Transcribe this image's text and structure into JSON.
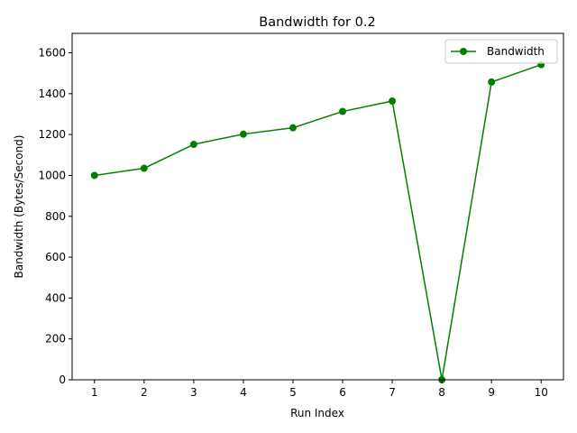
{
  "chart_data": {
    "type": "line",
    "title": "Bandwidth for 0.2",
    "xlabel": "Run Index",
    "ylabel": "Bandwidth (Bytes/Second)",
    "x": [
      1,
      2,
      3,
      4,
      5,
      6,
      7,
      8,
      9,
      10
    ],
    "xticks": [
      "1",
      "2",
      "3",
      "4",
      "5",
      "6",
      "7",
      "8",
      "9",
      "10"
    ],
    "yticks": [
      0,
      200,
      400,
      600,
      800,
      1000,
      1200,
      1400,
      1600
    ],
    "xlim": [
      0.55,
      10.45
    ],
    "ylim": [
      0,
      1695
    ],
    "grid": false,
    "legend_position": "top-right",
    "series": [
      {
        "name": "Bandwidth",
        "color": "#008000",
        "marker": "circle",
        "values": [
          1000,
          1035,
          1152,
          1202,
          1233,
          1313,
          1364,
          0,
          1457,
          1542
        ]
      }
    ]
  }
}
